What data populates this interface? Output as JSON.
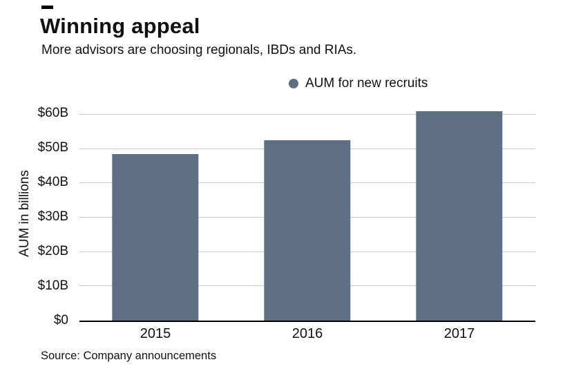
{
  "title": "Winning appeal",
  "subtitle": "More advisors are choosing regionals, IBDs and RIAs.",
  "legend": {
    "label": "AUM for new recruits",
    "dot_color": "#5e6f85"
  },
  "source": "Source: Company announcements",
  "chart_data": {
    "type": "bar",
    "categories": [
      "2015",
      "2016",
      "2017"
    ],
    "values": [
      48.5,
      52.5,
      61
    ],
    "title": "Winning appeal",
    "subtitle": "More advisors are choosing regionals, IBDs and RIAs.",
    "xlabel": "",
    "ylabel": "AUM in billions",
    "ylim": [
      0,
      63
    ],
    "yticks": [
      0,
      10,
      20,
      30,
      40,
      50,
      60
    ],
    "ytick_labels": [
      "$0",
      "$10B",
      "$20B",
      "$30B",
      "$40B",
      "$50B",
      "$60B"
    ],
    "legend": [
      "AUM for new recruits"
    ],
    "bar_color": "#5e6f85",
    "grid": true,
    "gridline_color": "#c8c8c8",
    "axis_color": "#000000"
  }
}
